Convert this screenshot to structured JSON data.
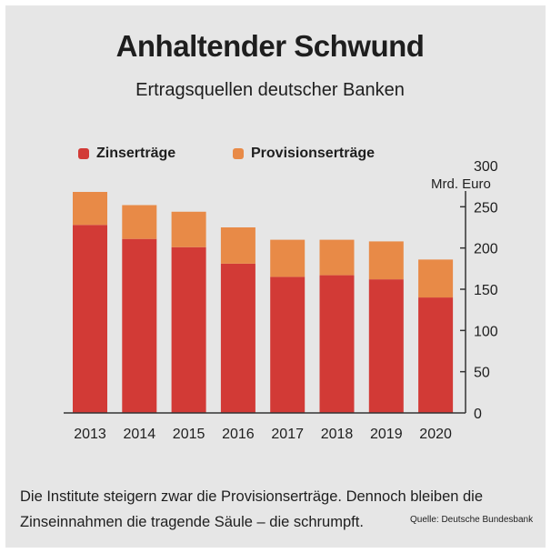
{
  "colors": {
    "zins": "#d23a36",
    "provision": "#e88a47",
    "axis": "#333333",
    "text": "#1e1e1e"
  },
  "legend": {
    "zins": "Zinserträge",
    "provision": "Provisionserträge"
  },
  "unit_label": "Mrd. Euro",
  "footer": {
    "line1": "Die Institute steigern zwar die Provisionserträge. Dennoch bleiben die",
    "line2": "Zinseinnahmen die tragende Säule – die schrumpft.",
    "source": "Quelle: Deutsche Bundesbank"
  },
  "chart_data": {
    "type": "bar",
    "stacked": true,
    "title": "Anhaltender Schwund",
    "subtitle": "Ertragsquellen deutscher Banken",
    "categories": [
      "2013",
      "2014",
      "2015",
      "2016",
      "2017",
      "2018",
      "2019",
      "2020"
    ],
    "series": [
      {
        "name": "Zinserträge",
        "values": [
          228,
          211,
          201,
          181,
          165,
          167,
          162,
          140
        ]
      },
      {
        "name": "Provisionserträge",
        "values": [
          40,
          41,
          43,
          44,
          45,
          43,
          46,
          46
        ]
      }
    ],
    "ylabel": "Mrd. Euro",
    "ylim": [
      0,
      300
    ],
    "yticks": [
      0,
      50,
      100,
      150,
      200,
      250,
      300
    ],
    "y_axis_side": "right"
  }
}
